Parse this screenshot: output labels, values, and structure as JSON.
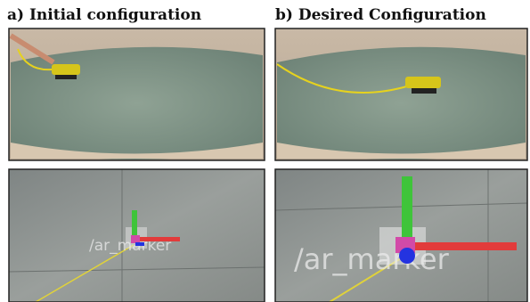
{
  "panels": [
    {
      "label": "a) Initial configuration",
      "overlay_text": "/ar_marker"
    },
    {
      "label": "b) Desired Configuration",
      "overlay_text": "/ar_marker"
    }
  ]
}
